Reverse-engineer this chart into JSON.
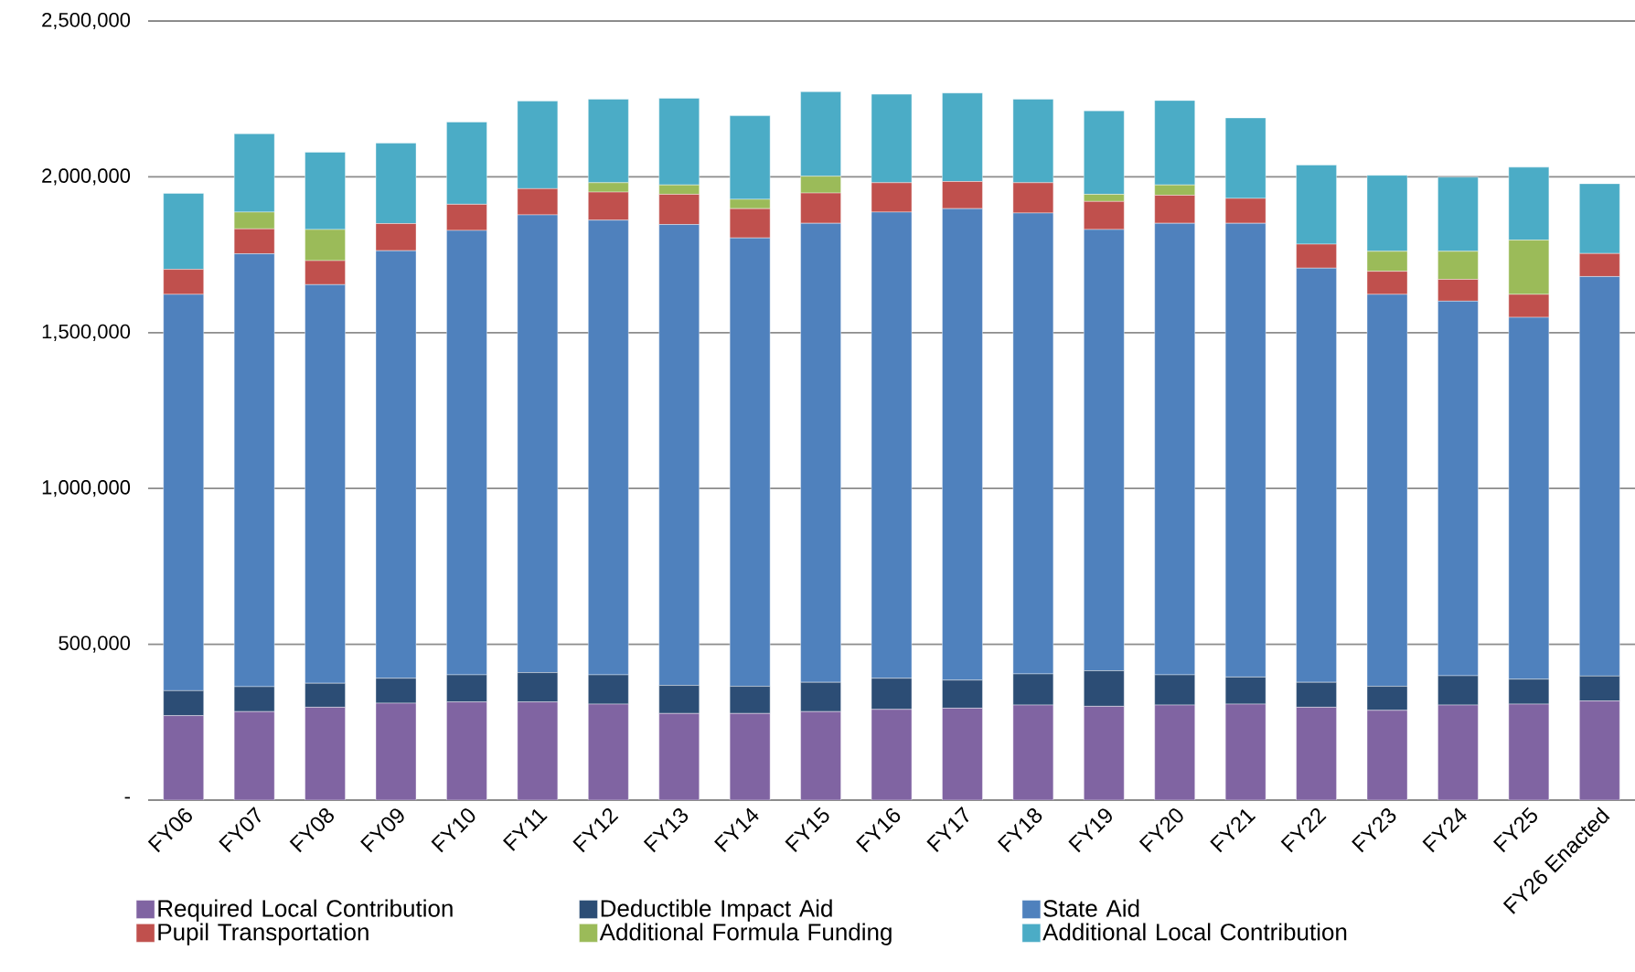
{
  "chart_data": {
    "type": "bar",
    "stacked": true,
    "grid": "y",
    "legend": "bottom",
    "categories": [
      "FY06",
      "FY07",
      "FY08",
      "FY09",
      "FY10",
      "FY11",
      "FY12",
      "FY13",
      "FY14",
      "FY15",
      "FY16",
      "FY17",
      "FY18",
      "FY19",
      "FY20",
      "FY21",
      "FY22",
      "FY23",
      "FY24",
      "FY25",
      "FY26 Enacted"
    ],
    "ylim": [
      0,
      2500000
    ],
    "yticks": [
      {
        "value": 0,
        "label": "-"
      },
      {
        "value": 500000,
        "label": "500,000"
      },
      {
        "value": 1000000,
        "label": "1,000,000"
      },
      {
        "value": 1500000,
        "label": "1,500,000"
      },
      {
        "value": 2000000,
        "label": "2,000,000"
      },
      {
        "value": 2500000,
        "label": "2,500,000"
      }
    ],
    "series": [
      {
        "name": "Required Local Contribution",
        "color": "#8064a2",
        "values": [
          271000,
          284000,
          298000,
          311000,
          315000,
          315000,
          308000,
          278000,
          278000,
          284000,
          291000,
          295000,
          305000,
          301000,
          305000,
          308000,
          298000,
          288000,
          305000,
          308000,
          318000
        ]
      },
      {
        "name": "Deductible Impact Aid",
        "color": "#2c4d75",
        "values": [
          80000,
          80000,
          77000,
          80000,
          87000,
          94000,
          94000,
          90000,
          87000,
          94000,
          100000,
          90000,
          100000,
          114000,
          97000,
          87000,
          80000,
          77000,
          94000,
          80000,
          80000
        ]
      },
      {
        "name": "State Aid",
        "color": "#4f81bd",
        "values": [
          1272000,
          1389000,
          1279000,
          1372000,
          1426000,
          1469000,
          1459000,
          1479000,
          1439000,
          1473000,
          1496000,
          1513000,
          1479000,
          1416000,
          1449000,
          1456000,
          1329000,
          1258000,
          1202000,
          1161000,
          1282000
        ]
      },
      {
        "name": "Pupil Transportation",
        "color": "#c0504d",
        "values": [
          80000,
          80000,
          77000,
          87000,
          84000,
          84000,
          90000,
          97000,
          94000,
          97000,
          94000,
          87000,
          97000,
          90000,
          90000,
          80000,
          77000,
          74000,
          70000,
          74000,
          74000
        ]
      },
      {
        "name": "Additional Formula Funding",
        "color": "#9bbb59",
        "values": [
          0,
          54000,
          100000,
          0,
          0,
          0,
          30000,
          30000,
          30000,
          54000,
          0,
          0,
          0,
          23000,
          33000,
          0,
          0,
          64000,
          90000,
          174000,
          0
        ]
      },
      {
        "name": "Additional Local Contribution",
        "color": "#4bacc6",
        "values": [
          244000,
          251000,
          248000,
          258000,
          264000,
          281000,
          268000,
          278000,
          268000,
          271000,
          284000,
          284000,
          268000,
          268000,
          271000,
          258000,
          254000,
          244000,
          238000,
          234000,
          224000
        ]
      }
    ]
  }
}
